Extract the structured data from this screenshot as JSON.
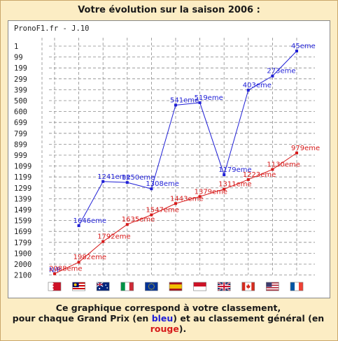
{
  "header": {
    "title": "Votre évolution sur la saison 2006 :"
  },
  "caption": {
    "line1": "Ce graphique correspond à votre classement,",
    "line2_a": "pour chaque Grand Prix (en ",
    "line2_blue": "bleu",
    "line2_b": ") et au classement général (en",
    "line3_red": "rouge",
    "line3_b": ")."
  },
  "colors": {
    "blue_series": "#1f1fd6",
    "red_series": "#d61a1a",
    "background": "#fcedc4"
  },
  "chart_data": {
    "type": "line",
    "chart_label": "PronoF1.fr - J.10",
    "y_ticks": [
      1,
      99,
      199,
      299,
      399,
      500,
      600,
      699,
      799,
      899,
      999,
      1099,
      1199,
      1299,
      1399,
      1499,
      1599,
      1699,
      1799,
      1900,
      2000,
      2100
    ],
    "ylim": [
      2100,
      1
    ],
    "y_inverted": true,
    "grid": true,
    "categories": [
      "bahrain-flag",
      "malaysia-flag",
      "australia-flag",
      "italy-flag",
      "europe-flag",
      "spain-flag",
      "monaco-flag",
      "uk-flag",
      "canada-flag",
      "usa-flag",
      "france-flag"
    ],
    "series": [
      {
        "color": "#1f1fd6",
        "values": [
          null,
          1646,
          1241,
          1250,
          1308,
          541,
          519,
          1179,
          403,
          273,
          45
        ],
        "labels": [
          "N/P",
          "1646eme",
          "1241eme",
          "1250eme",
          "1308eme",
          "541eme",
          "519eme",
          "1179eme",
          "403eme",
          "273eme",
          "45eme"
        ]
      },
      {
        "color": "#d61a1a",
        "values": [
          2088,
          1982,
          1792,
          1635,
          1547,
          1443,
          1379,
          1311,
          1223,
          1130,
          979
        ],
        "labels": [
          "2088eme",
          "1982eme",
          "1792eme",
          "1635eme",
          "1547eme",
          "1443eme",
          "1379eme",
          "1311eme",
          "1223eme",
          "1130eme",
          "979eme"
        ]
      }
    ]
  }
}
